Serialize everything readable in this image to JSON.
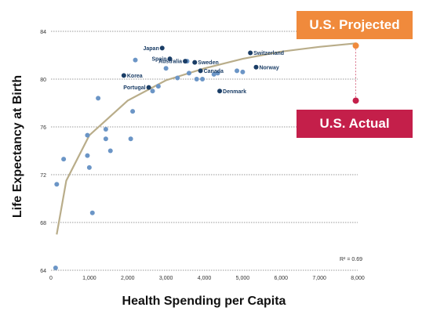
{
  "chart_data": {
    "type": "scatter",
    "title": "",
    "xlabel": "Health Spending per Capita",
    "ylabel": "Life Expectancy at Birth",
    "xlim": [
      0,
      8000
    ],
    "ylim": [
      64,
      84
    ],
    "x_ticks": [
      "0",
      "1,000",
      "2,000",
      "3,000",
      "4,000",
      "5,000",
      "6,000",
      "7,000",
      "8,000"
    ],
    "y_ticks": [
      "64",
      "68",
      "72",
      "76",
      "80",
      "84"
    ],
    "grid": "horizontal dotted",
    "r_squared": "R² = 0.69",
    "trend": {
      "type": "logarithmic",
      "color": "#b9ad8a",
      "points": [
        [
          150,
          67
        ],
        [
          400,
          71.5
        ],
        [
          1000,
          75.3
        ],
        [
          2000,
          78.2
        ],
        [
          3000,
          79.9
        ],
        [
          4000,
          80.9
        ],
        [
          5000,
          81.7
        ],
        [
          6000,
          82.3
        ],
        [
          7000,
          82.7
        ],
        [
          7950,
          83.0
        ]
      ]
    },
    "points_light": [
      [
        120,
        64.2
      ],
      [
        150,
        71.2
      ],
      [
        330,
        73.3
      ],
      [
        950,
        75.3
      ],
      [
        950,
        73.6
      ],
      [
        1000,
        72.6
      ],
      [
        1080,
        68.8
      ],
      [
        1230,
        78.4
      ],
      [
        1430,
        75.8
      ],
      [
        1430,
        75.0
      ],
      [
        1550,
        74.0
      ],
      [
        2080,
        75.0
      ],
      [
        2130,
        77.3
      ],
      [
        2200,
        81.6
      ],
      [
        2650,
        79.0
      ],
      [
        2800,
        79.4
      ],
      [
        3000,
        80.9
      ],
      [
        3300,
        80.1
      ],
      [
        3600,
        80.5
      ],
      [
        3800,
        80.0
      ],
      [
        3950,
        80.0
      ],
      [
        4250,
        80.4
      ],
      [
        4350,
        80.5
      ],
      [
        4850,
        80.7
      ],
      [
        5000,
        80.6
      ],
      [
        3550,
        81.5
      ]
    ],
    "points_labeled": [
      {
        "label": "Japan",
        "x": 2900,
        "y": 82.6,
        "color": "#1a3d66"
      },
      {
        "label": "Spain",
        "x": 3100,
        "y": 81.7,
        "color": "#1a3d66"
      },
      {
        "label": "Australia",
        "x": 3500,
        "y": 81.5,
        "color": "#1a3d66"
      },
      {
        "label": "Sweden",
        "x": 3750,
        "y": 81.4,
        "color": "#1a3d66"
      },
      {
        "label": "Switzerland",
        "x": 5200,
        "y": 82.2,
        "color": "#1a3d66"
      },
      {
        "label": "Norway",
        "x": 5350,
        "y": 81.0,
        "color": "#1a3d66"
      },
      {
        "label": "Canada",
        "x": 3900,
        "y": 80.7,
        "color": "#1a3d66"
      },
      {
        "label": "Korea",
        "x": 1900,
        "y": 80.3,
        "color": "#1a3d66"
      },
      {
        "label": "Portugal",
        "x": 2550,
        "y": 79.3,
        "color": "#1a3d66"
      },
      {
        "label": "Denmark",
        "x": 4400,
        "y": 79.0,
        "color": "#1a3d66"
      }
    ],
    "us_projected": {
      "x": 7950,
      "y": 82.8,
      "color": "#f08a3c"
    },
    "us_actual": {
      "x": 7950,
      "y": 78.2,
      "color": "#c41f4a"
    }
  },
  "callouts": {
    "projected_label": "U.S. Projected",
    "projected_color": "#f08a3c",
    "actual_label": "U.S. Actual",
    "actual_color": "#c41f4a"
  }
}
